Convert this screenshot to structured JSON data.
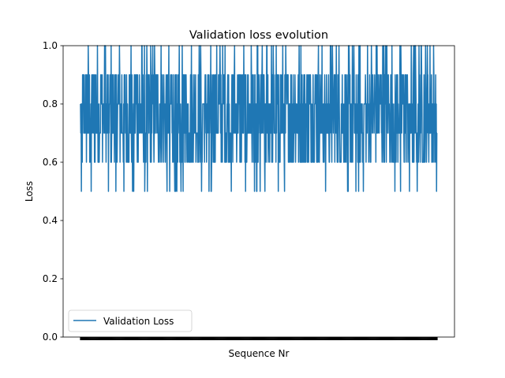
{
  "chart_data": {
    "type": "line",
    "title": "Validation loss evolution",
    "xlabel": "Sequence Nr",
    "ylabel": "Loss",
    "ylim": [
      0,
      1.0
    ],
    "yticks": [
      "0.0",
      "0.2",
      "0.4",
      "0.6",
      "0.8",
      "1.0"
    ],
    "grid": false,
    "legend_position": "lower-left",
    "x_tick_labels_overlapping": true,
    "series": [
      {
        "name": "Validation Loss",
        "color": "#1f77b4",
        "value_levels": [
          0.5,
          0.6,
          0.7,
          0.8,
          0.9,
          1.0
        ],
        "typical_range": [
          0.6,
          0.9
        ],
        "sample_count": 1200
      }
    ]
  }
}
